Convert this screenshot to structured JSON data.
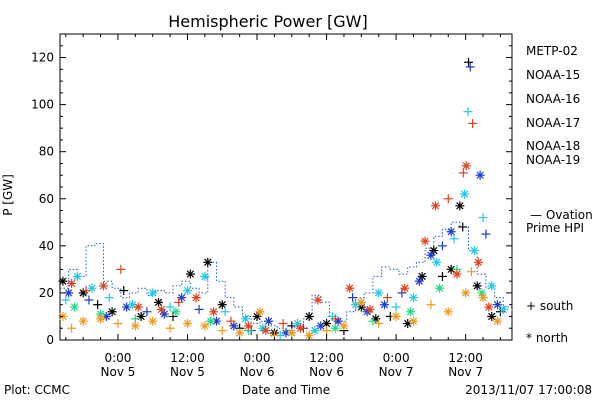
{
  "chart_data": {
    "type": "scatter",
    "title": "Hemispheric Power [GW]",
    "xlabel": "Date and Time",
    "ylabel": "P [GW]",
    "ylim": [
      0,
      130
    ],
    "xlim_hours": [
      -10,
      68
    ],
    "y_ticks": [
      0,
      20,
      40,
      60,
      80,
      100,
      120
    ],
    "x_ticks": [
      {
        "h": 0,
        "time": "0:00",
        "date": "Nov 5"
      },
      {
        "h": 12,
        "time": "12:00",
        "date": "Nov 5"
      },
      {
        "h": 24,
        "time": "0:00",
        "date": "Nov 6"
      },
      {
        "h": 36,
        "time": "12:00",
        "date": "Nov 6"
      },
      {
        "h": 48,
        "time": "0:00",
        "date": "Nov 7"
      },
      {
        "h": 60,
        "time": "12:00",
        "date": "Nov 7"
      }
    ],
    "footer_left": "Plot: CCMC",
    "footer_right": "2013/11/07 17:00:08",
    "legend": {
      "satellites": [
        {
          "name": "METP-02",
          "color": "#000000"
        },
        {
          "name": "NOAA-15",
          "color": "#1a3cc8"
        },
        {
          "name": "NOAA-16",
          "color": "#20c8e6"
        },
        {
          "name": "NOAA-17",
          "color": "#20d884"
        },
        {
          "name": "NOAA-18",
          "color": "#f09a1c"
        },
        {
          "name": "NOAA-19",
          "color": "#e0401c"
        }
      ],
      "ovation_line1": "— Ovation",
      "ovation_line2": "Prime HPI",
      "ovation_color": "#1a5cc8",
      "south_label": "+ south",
      "north_label": "* north"
    },
    "ovation_hpi": [
      {
        "x": -10,
        "y": 22
      },
      {
        "x": -8.5,
        "y": 30
      },
      {
        "x": -7,
        "y": 27
      },
      {
        "x": -5.5,
        "y": 40
      },
      {
        "x": -4,
        "y": 41
      },
      {
        "x": -2.5,
        "y": 25
      },
      {
        "x": -1,
        "y": 22
      },
      {
        "x": 0.5,
        "y": 18
      },
      {
        "x": 2,
        "y": 20
      },
      {
        "x": 3.5,
        "y": 22
      },
      {
        "x": 5,
        "y": 19
      },
      {
        "x": 6.5,
        "y": 21
      },
      {
        "x": 8,
        "y": 20
      },
      {
        "x": 9.5,
        "y": 23
      },
      {
        "x": 11,
        "y": 25
      },
      {
        "x": 12.5,
        "y": 22
      },
      {
        "x": 14,
        "y": 20
      },
      {
        "x": 15.5,
        "y": 33
      },
      {
        "x": 17,
        "y": 25
      },
      {
        "x": 18.5,
        "y": 18
      },
      {
        "x": 20,
        "y": 14
      },
      {
        "x": 21.5,
        "y": 10
      },
      {
        "x": 23,
        "y": 7
      },
      {
        "x": 24.5,
        "y": 8
      },
      {
        "x": 26,
        "y": 6
      },
      {
        "x": 27.5,
        "y": 5
      },
      {
        "x": 29,
        "y": 4
      },
      {
        "x": 30.5,
        "y": 6
      },
      {
        "x": 32,
        "y": 9
      },
      {
        "x": 33.5,
        "y": 19
      },
      {
        "x": 35,
        "y": 16
      },
      {
        "x": 36.5,
        "y": 10
      },
      {
        "x": 38,
        "y": 8
      },
      {
        "x": 39.5,
        "y": 12
      },
      {
        "x": 41,
        "y": 18
      },
      {
        "x": 42.5,
        "y": 20
      },
      {
        "x": 44,
        "y": 27
      },
      {
        "x": 45.5,
        "y": 31
      },
      {
        "x": 47,
        "y": 30
      },
      {
        "x": 48.5,
        "y": 28
      },
      {
        "x": 50,
        "y": 31
      },
      {
        "x": 51.5,
        "y": 33
      },
      {
        "x": 53,
        "y": 39
      },
      {
        "x": 54.5,
        "y": 44
      },
      {
        "x": 56,
        "y": 47
      },
      {
        "x": 57.5,
        "y": 50
      },
      {
        "x": 59,
        "y": 48
      },
      {
        "x": 60.5,
        "y": 38
      },
      {
        "x": 62,
        "y": 28
      },
      {
        "x": 63.5,
        "y": 22
      },
      {
        "x": 65,
        "y": 18
      },
      {
        "x": 66.5,
        "y": 14
      },
      {
        "x": 68,
        "y": 12
      }
    ],
    "series": [
      {
        "name": "METP-02",
        "points": [
          {
            "x": -9.5,
            "y": 25,
            "h": "n"
          },
          {
            "x": -6,
            "y": 20,
            "h": "n"
          },
          {
            "x": -3.5,
            "y": 15,
            "h": "s"
          },
          {
            "x": -1,
            "y": 12,
            "h": "n"
          },
          {
            "x": 1,
            "y": 21,
            "h": "s"
          },
          {
            "x": 4,
            "y": 10,
            "h": "n"
          },
          {
            "x": 7,
            "y": 16,
            "h": "n"
          },
          {
            "x": 9.5,
            "y": 10,
            "h": "s"
          },
          {
            "x": 12.5,
            "y": 28,
            "h": "n"
          },
          {
            "x": 15.5,
            "y": 33,
            "h": "n"
          },
          {
            "x": 18,
            "y": 15,
            "h": "n"
          },
          {
            "x": 21,
            "y": 5,
            "h": "s"
          },
          {
            "x": 24,
            "y": 10,
            "h": "n"
          },
          {
            "x": 27,
            "y": 3,
            "h": "n"
          },
          {
            "x": 30,
            "y": 6,
            "h": "s"
          },
          {
            "x": 33,
            "y": 10,
            "h": "n"
          },
          {
            "x": 36,
            "y": 7,
            "h": "n"
          },
          {
            "x": 39,
            "y": 4,
            "h": "s"
          },
          {
            "x": 42,
            "y": 14,
            "h": "n"
          },
          {
            "x": 44.5,
            "y": 9,
            "h": "n"
          },
          {
            "x": 47,
            "y": 10,
            "h": "s"
          },
          {
            "x": 50,
            "y": 7,
            "h": "n"
          },
          {
            "x": 52.5,
            "y": 27,
            "h": "n"
          },
          {
            "x": 54.5,
            "y": 38,
            "h": "n"
          },
          {
            "x": 56,
            "y": 27,
            "h": "s"
          },
          {
            "x": 57.5,
            "y": 30,
            "h": "n"
          },
          {
            "x": 59,
            "y": 57,
            "h": "n"
          },
          {
            "x": 59.5,
            "y": 48,
            "h": "s"
          },
          {
            "x": 60.5,
            "y": 118,
            "h": "s"
          },
          {
            "x": 62,
            "y": 23,
            "h": "n"
          },
          {
            "x": 64.5,
            "y": 10,
            "h": "n"
          },
          {
            "x": 66,
            "y": 12,
            "h": "s"
          }
        ]
      },
      {
        "name": "NOAA-15",
        "points": [
          {
            "x": -8.5,
            "y": 20,
            "h": "n"
          },
          {
            "x": -5,
            "y": 17,
            "h": "s"
          },
          {
            "x": -2,
            "y": 10,
            "h": "n"
          },
          {
            "x": 1.5,
            "y": 14,
            "h": "n"
          },
          {
            "x": 5,
            "y": 12,
            "h": "s"
          },
          {
            "x": 8,
            "y": 11,
            "h": "n"
          },
          {
            "x": 11,
            "y": 18,
            "h": "n"
          },
          {
            "x": 14,
            "y": 13,
            "h": "s"
          },
          {
            "x": 17,
            "y": 8,
            "h": "n"
          },
          {
            "x": 20,
            "y": 6,
            "h": "n"
          },
          {
            "x": 23,
            "y": 4,
            "h": "s"
          },
          {
            "x": 26,
            "y": 8,
            "h": "n"
          },
          {
            "x": 29,
            "y": 3,
            "h": "n"
          },
          {
            "x": 32,
            "y": 5,
            "h": "s"
          },
          {
            "x": 35,
            "y": 6,
            "h": "n"
          },
          {
            "x": 38,
            "y": 8,
            "h": "n"
          },
          {
            "x": 40.5,
            "y": 18,
            "h": "s"
          },
          {
            "x": 43,
            "y": 12,
            "h": "n"
          },
          {
            "x": 46,
            "y": 15,
            "h": "n"
          },
          {
            "x": 49,
            "y": 20,
            "h": "s"
          },
          {
            "x": 52,
            "y": 25,
            "h": "n"
          },
          {
            "x": 54,
            "y": 36,
            "h": "n"
          },
          {
            "x": 56,
            "y": 40,
            "h": "s"
          },
          {
            "x": 57.5,
            "y": 46,
            "h": "n"
          },
          {
            "x": 60.8,
            "y": 116,
            "h": "s"
          },
          {
            "x": 62.5,
            "y": 70,
            "h": "n"
          },
          {
            "x": 63.5,
            "y": 45,
            "h": "s"
          },
          {
            "x": 65.5,
            "y": 15,
            "h": "n"
          }
        ]
      },
      {
        "name": "NOAA-16",
        "points": [
          {
            "x": -9,
            "y": 17,
            "h": "s"
          },
          {
            "x": -7,
            "y": 27,
            "h": "n"
          },
          {
            "x": -4.5,
            "y": 22,
            "h": "n"
          },
          {
            "x": -1.5,
            "y": 18,
            "h": "s"
          },
          {
            "x": 2.5,
            "y": 15,
            "h": "n"
          },
          {
            "x": 6,
            "y": 20,
            "h": "n"
          },
          {
            "x": 9,
            "y": 14,
            "h": "s"
          },
          {
            "x": 12,
            "y": 21,
            "h": "n"
          },
          {
            "x": 15,
            "y": 27,
            "h": "n"
          },
          {
            "x": 18.5,
            "y": 12,
            "h": "s"
          },
          {
            "x": 22,
            "y": 9,
            "h": "n"
          },
          {
            "x": 25,
            "y": 5,
            "h": "n"
          },
          {
            "x": 28,
            "y": 2,
            "h": "s"
          },
          {
            "x": 31,
            "y": 7,
            "h": "n"
          },
          {
            "x": 34,
            "y": 4,
            "h": "n"
          },
          {
            "x": 37,
            "y": 10,
            "h": "s"
          },
          {
            "x": 41,
            "y": 15,
            "h": "n"
          },
          {
            "x": 45,
            "y": 20,
            "h": "n"
          },
          {
            "x": 48,
            "y": 14,
            "h": "s"
          },
          {
            "x": 51,
            "y": 18,
            "h": "n"
          },
          {
            "x": 55,
            "y": 33,
            "h": "n"
          },
          {
            "x": 58,
            "y": 43,
            "h": "s"
          },
          {
            "x": 59.8,
            "y": 62,
            "h": "n"
          },
          {
            "x": 60.4,
            "y": 97,
            "h": "s"
          },
          {
            "x": 61.5,
            "y": 38,
            "h": "n"
          },
          {
            "x": 63,
            "y": 52,
            "h": "s"
          },
          {
            "x": 64.5,
            "y": 23,
            "h": "n"
          },
          {
            "x": 66.5,
            "y": 13,
            "h": "n"
          }
        ]
      },
      {
        "name": "NOAA-17",
        "points": [
          {
            "x": -7.5,
            "y": 14,
            "h": "n"
          },
          {
            "x": -3,
            "y": 11,
            "h": "n"
          },
          {
            "x": 3,
            "y": 9,
            "h": "s"
          },
          {
            "x": 10,
            "y": 12,
            "h": "n"
          },
          {
            "x": 16,
            "y": 8,
            "h": "n"
          },
          {
            "x": 22.5,
            "y": 4,
            "h": "s"
          },
          {
            "x": 30,
            "y": 3,
            "h": "n"
          },
          {
            "x": 37.5,
            "y": 5,
            "h": "n"
          },
          {
            "x": 44,
            "y": 8,
            "h": "s"
          },
          {
            "x": 50.5,
            "y": 12,
            "h": "n"
          },
          {
            "x": 55.5,
            "y": 22,
            "h": "n"
          },
          {
            "x": 58.5,
            "y": 30,
            "h": "s"
          },
          {
            "x": 62.8,
            "y": 20,
            "h": "n"
          }
        ]
      },
      {
        "name": "NOAA-18",
        "points": [
          {
            "x": -9.5,
            "y": 10,
            "h": "n"
          },
          {
            "x": -8,
            "y": 5,
            "h": "s"
          },
          {
            "x": -6,
            "y": 8,
            "h": "n"
          },
          {
            "x": -3,
            "y": 9,
            "h": "n"
          },
          {
            "x": 0,
            "y": 7,
            "h": "s"
          },
          {
            "x": 3,
            "y": 6,
            "h": "n"
          },
          {
            "x": 6,
            "y": 8,
            "h": "n"
          },
          {
            "x": 9,
            "y": 5,
            "h": "s"
          },
          {
            "x": 12,
            "y": 7,
            "h": "n"
          },
          {
            "x": 15,
            "y": 6,
            "h": "n"
          },
          {
            "x": 18,
            "y": 4,
            "h": "s"
          },
          {
            "x": 21,
            "y": 3,
            "h": "n"
          },
          {
            "x": 24.5,
            "y": 12,
            "h": "n"
          },
          {
            "x": 27,
            "y": 2,
            "h": "s"
          },
          {
            "x": 30,
            "y": 3,
            "h": "n"
          },
          {
            "x": 33,
            "y": 2,
            "h": "n"
          },
          {
            "x": 36,
            "y": 4,
            "h": "s"
          },
          {
            "x": 39,
            "y": 6,
            "h": "n"
          },
          {
            "x": 42,
            "y": 16,
            "h": "n"
          },
          {
            "x": 45,
            "y": 7,
            "h": "s"
          },
          {
            "x": 48,
            "y": 10,
            "h": "n"
          },
          {
            "x": 51,
            "y": 8,
            "h": "n"
          },
          {
            "x": 54,
            "y": 15,
            "h": "s"
          },
          {
            "x": 57,
            "y": 12,
            "h": "n"
          },
          {
            "x": 60,
            "y": 20,
            "h": "n"
          },
          {
            "x": 61,
            "y": 29,
            "h": "s"
          },
          {
            "x": 63,
            "y": 18,
            "h": "n"
          },
          {
            "x": 65.5,
            "y": 8,
            "h": "n"
          }
        ]
      },
      {
        "name": "NOAA-19",
        "points": [
          {
            "x": -8,
            "y": 24,
            "h": "n"
          },
          {
            "x": -5.5,
            "y": 21,
            "h": "s"
          },
          {
            "x": -2.5,
            "y": 23,
            "h": "n"
          },
          {
            "x": 0.5,
            "y": 30,
            "h": "s"
          },
          {
            "x": 3.5,
            "y": 14,
            "h": "n"
          },
          {
            "x": 7.5,
            "y": 13,
            "h": "n"
          },
          {
            "x": 10.5,
            "y": 16,
            "h": "s"
          },
          {
            "x": 13.5,
            "y": 18,
            "h": "n"
          },
          {
            "x": 16.5,
            "y": 12,
            "h": "n"
          },
          {
            "x": 19.5,
            "y": 8,
            "h": "s"
          },
          {
            "x": 22.5,
            "y": 6,
            "h": "n"
          },
          {
            "x": 25.5,
            "y": 4,
            "h": "n"
          },
          {
            "x": 28.5,
            "y": 7,
            "h": "s"
          },
          {
            "x": 31.5,
            "y": 5,
            "h": "n"
          },
          {
            "x": 34.5,
            "y": 17,
            "h": "n"
          },
          {
            "x": 37.5,
            "y": 9,
            "h": "s"
          },
          {
            "x": 40,
            "y": 22,
            "h": "n"
          },
          {
            "x": 43.5,
            "y": 13,
            "h": "n"
          },
          {
            "x": 46.5,
            "y": 18,
            "h": "s"
          },
          {
            "x": 49.5,
            "y": 22,
            "h": "n"
          },
          {
            "x": 53,
            "y": 42,
            "h": "n"
          },
          {
            "x": 54.8,
            "y": 57,
            "h": "n"
          },
          {
            "x": 57,
            "y": 60,
            "h": "s"
          },
          {
            "x": 58.5,
            "y": 28,
            "h": "n"
          },
          {
            "x": 59.6,
            "y": 71,
            "h": "s"
          },
          {
            "x": 60.1,
            "y": 74,
            "h": "n"
          },
          {
            "x": 61.2,
            "y": 92,
            "h": "s"
          },
          {
            "x": 62.2,
            "y": 33,
            "h": "n"
          },
          {
            "x": 64,
            "y": 14,
            "h": "n"
          }
        ]
      }
    ]
  }
}
